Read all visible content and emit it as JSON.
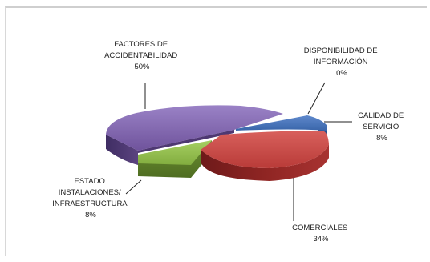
{
  "chart_data": {
    "type": "pie",
    "title": "",
    "slices": [
      {
        "name": "FACTORES DE ACCIDENTABILIDAD",
        "label_lines": [
          "FACTORES DE",
          "ACCIDENTABILIDAD"
        ],
        "percent_label": "50%",
        "value": 50,
        "color": "#7b5fa8"
      },
      {
        "name": "DISPONIBILIDAD DE INFORMACIÓN",
        "label_lines": [
          "DISPONIBILIDAD DE",
          "INFORMACIÓN"
        ],
        "percent_label": "0%",
        "value": 0,
        "color": "#4a73b8"
      },
      {
        "name": "CALIDAD DE SERVICIO",
        "label_lines": [
          "CALIDAD DE",
          "SERVICIO"
        ],
        "percent_label": "8%",
        "value": 8,
        "color": "#3b6fb5"
      },
      {
        "name": "COMERCIALES",
        "label_lines": [
          "COMERCIALES"
        ],
        "percent_label": "34%",
        "value": 34,
        "color": "#c0413f"
      },
      {
        "name": "ESTADO INSTALACIONES/ INFRAESTRUCTURA",
        "label_lines": [
          "ESTADO",
          "INSTALACIONES/",
          "INFRAESTRUCTURA"
        ],
        "percent_label": "8%",
        "value": 8,
        "color": "#8fb94a"
      }
    ]
  }
}
